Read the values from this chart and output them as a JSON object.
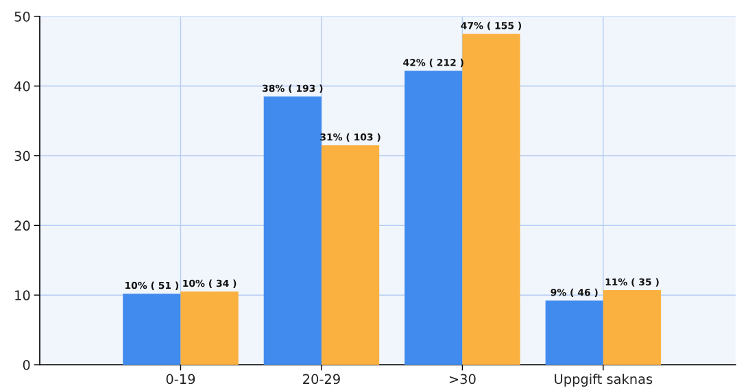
{
  "chart_data": {
    "type": "bar",
    "categories": [
      "0-19",
      "20-29",
      ">30",
      "Uppgift saknas"
    ],
    "series": [
      {
        "color": "#418bef",
        "values": [
          10.2,
          38.5,
          42.2,
          9.2
        ],
        "value_labels": [
          "10% ( 51 )",
          "38% ( 193 )",
          "42% ( 212 )",
          "9% ( 46 )"
        ]
      },
      {
        "color": "#fab13f",
        "values": [
          10.5,
          31.5,
          47.5,
          10.7
        ],
        "value_labels": [
          "10% ( 34 )",
          "31% ( 103 )",
          "47% ( 155 )",
          "11% ( 35 )"
        ]
      }
    ],
    "ylim": [
      0,
      50
    ],
    "yticks": [
      0,
      10,
      20,
      30,
      40,
      50
    ],
    "grid": true
  }
}
